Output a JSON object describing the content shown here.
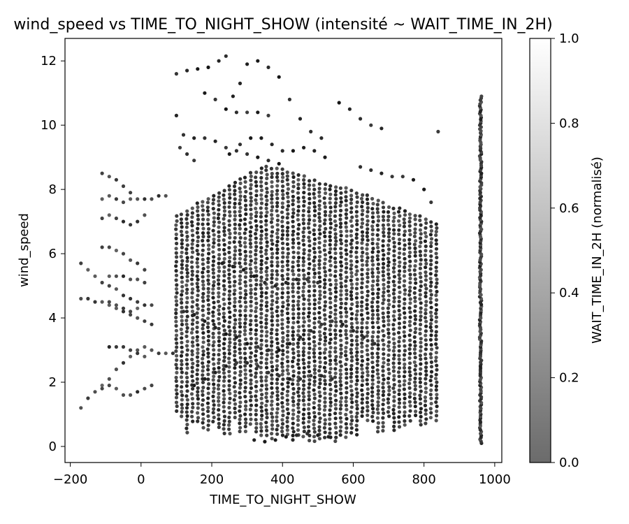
{
  "chart_data": {
    "type": "scatter",
    "title": "wind_speed vs TIME_TO_NIGHT_SHOW (intensité ~ WAIT_TIME_IN_2H)",
    "xlabel": "TIME_TO_NIGHT_SHOW",
    "ylabel": "wind_speed",
    "xlim": [
      -215,
      1020
    ],
    "ylim": [
      -0.5,
      12.7
    ],
    "xticks": [
      -200,
      0,
      200,
      400,
      600,
      800,
      1000
    ],
    "yticks": [
      0,
      2,
      4,
      6,
      8,
      10,
      12
    ],
    "grid": false,
    "colorbar": {
      "label": "WAIT_TIME_IN_2H (normalisé)",
      "range": [
        0,
        1
      ],
      "ticks": [
        0.0,
        0.2,
        0.4,
        0.6,
        0.8,
        1.0
      ],
      "tick_labels": [
        "0.0",
        "0.2",
        "0.4",
        "0.6",
        "0.8",
        "1.0"
      ],
      "color_low": "#6b6b6b",
      "color_high": "#ffffff"
    },
    "marker_color": "#2b2b2b",
    "series": [
      {
        "description_points": "dense vertical columns every ~15 units from x=100 to x=840, y from ~0.3 to ~9, plus sparse diagonal tracks from x=-170 to x=90, and a dense column at x=960 spanning y 0.1 to 10.9",
        "points": [
          [
            -170,
            1.2
          ],
          [
            -150,
            1.5
          ],
          [
            -130,
            1.7
          ],
          [
            -110,
            1.9
          ],
          [
            -90,
            2.1
          ],
          [
            -70,
            2.4
          ],
          [
            -50,
            2.6
          ],
          [
            -30,
            2.8
          ],
          [
            -10,
            3.0
          ],
          [
            10,
            3.1
          ],
          [
            30,
            3.0
          ],
          [
            50,
            2.9
          ],
          [
            70,
            2.9
          ],
          [
            90,
            2.9
          ],
          [
            -170,
            4.6
          ],
          [
            -150,
            4.6
          ],
          [
            -130,
            4.5
          ],
          [
            -110,
            4.5
          ],
          [
            -90,
            4.4
          ],
          [
            -70,
            4.3
          ],
          [
            -50,
            4.2
          ],
          [
            -30,
            4.1
          ],
          [
            -10,
            4.0
          ],
          [
            10,
            3.9
          ],
          [
            30,
            3.8
          ],
          [
            -170,
            5.7
          ],
          [
            -150,
            5.5
          ],
          [
            -130,
            5.3
          ],
          [
            -110,
            5.1
          ],
          [
            -90,
            5.0
          ],
          [
            -70,
            4.9
          ],
          [
            -50,
            4.7
          ],
          [
            -30,
            4.6
          ],
          [
            -10,
            4.5
          ],
          [
            -110,
            6.2
          ],
          [
            -90,
            6.2
          ],
          [
            -70,
            6.1
          ],
          [
            -50,
            6.0
          ],
          [
            -30,
            5.8
          ],
          [
            -10,
            5.7
          ],
          [
            10,
            5.5
          ],
          [
            -110,
            7.7
          ],
          [
            -90,
            7.8
          ],
          [
            -70,
            7.7
          ],
          [
            -50,
            7.6
          ],
          [
            -30,
            7.7
          ],
          [
            -10,
            7.7
          ],
          [
            10,
            7.7
          ],
          [
            30,
            7.7
          ],
          [
            50,
            7.8
          ],
          [
            70,
            7.8
          ],
          [
            -110,
            8.5
          ],
          [
            -90,
            8.4
          ],
          [
            -70,
            8.3
          ],
          [
            -50,
            8.1
          ],
          [
            -30,
            7.9
          ],
          [
            -110,
            7.1
          ],
          [
            -90,
            7.2
          ],
          [
            -70,
            7.1
          ],
          [
            -50,
            7.0
          ],
          [
            -30,
            6.9
          ],
          [
            -10,
            7.0
          ],
          [
            10,
            7.2
          ],
          [
            -90,
            3.1
          ],
          [
            -70,
            3.1
          ],
          [
            -50,
            3.1
          ],
          [
            -30,
            3.0
          ],
          [
            -10,
            2.9
          ],
          [
            10,
            2.8
          ],
          [
            -110,
            1.8
          ],
          [
            -90,
            1.9
          ],
          [
            -70,
            1.8
          ],
          [
            -50,
            1.6
          ],
          [
            -30,
            1.6
          ],
          [
            -10,
            1.7
          ],
          [
            10,
            1.8
          ],
          [
            30,
            1.9
          ],
          [
            -90,
            4.5
          ],
          [
            -70,
            4.4
          ],
          [
            -50,
            4.3
          ],
          [
            -30,
            4.2
          ],
          [
            -10,
            4.3
          ],
          [
            10,
            4.4
          ],
          [
            30,
            4.4
          ],
          [
            -90,
            5.3
          ],
          [
            -70,
            5.3
          ],
          [
            -50,
            5.3
          ],
          [
            -30,
            5.2
          ],
          [
            -10,
            5.2
          ],
          [
            10,
            5.1
          ]
        ]
      }
    ]
  }
}
